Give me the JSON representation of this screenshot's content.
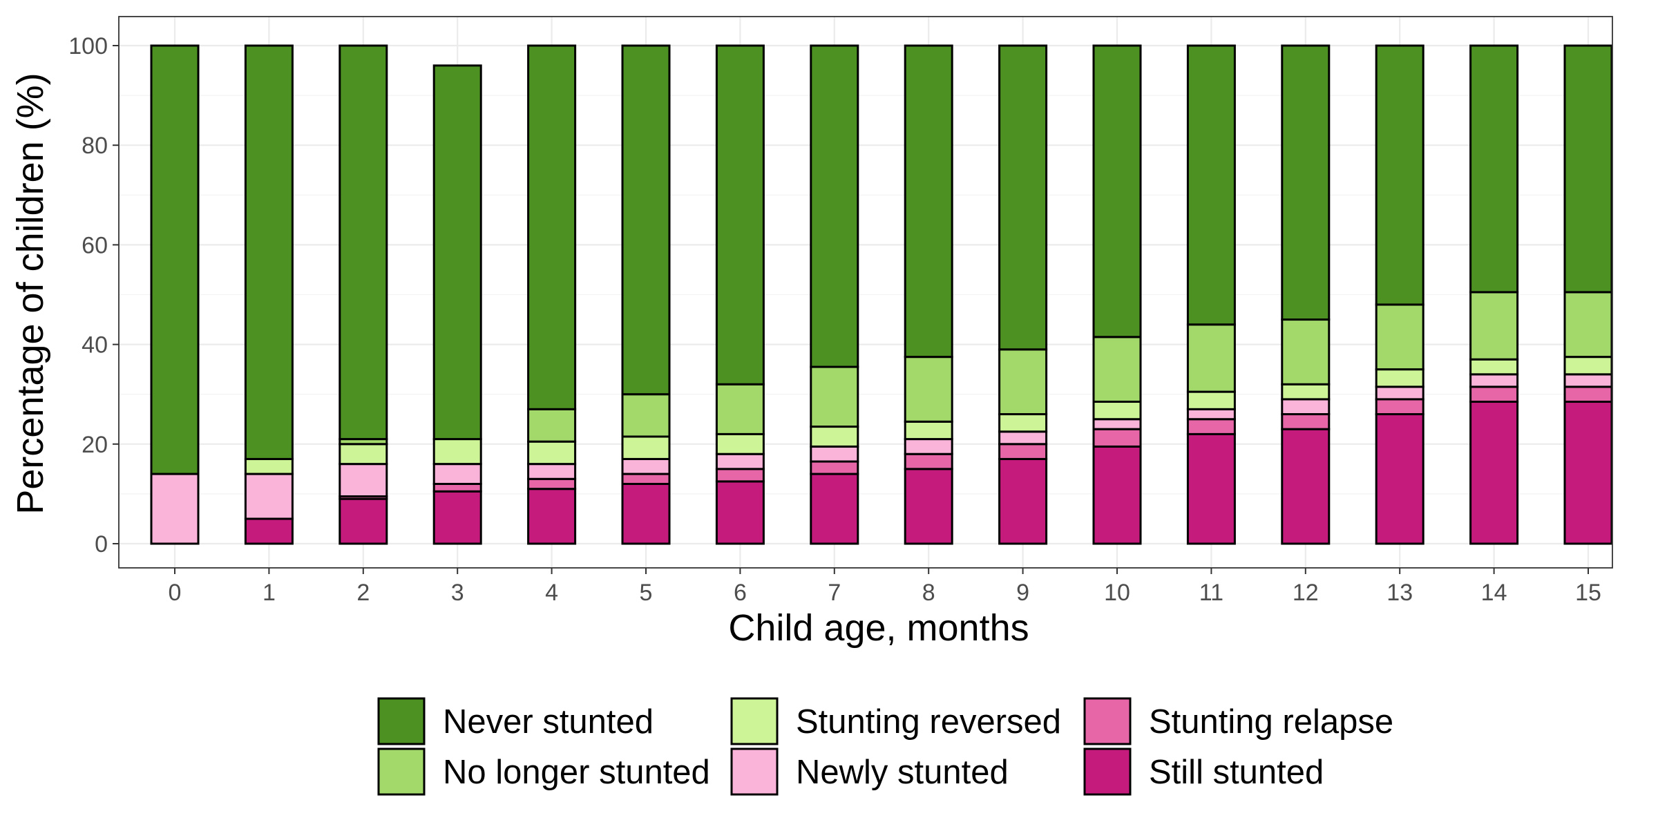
{
  "chart_data": {
    "type": "bar",
    "stacked": true,
    "xlabel": "Child age, months",
    "ylabel": "Percentage of children (%)",
    "ylim": [
      0,
      100
    ],
    "yticks": [
      0,
      20,
      40,
      60,
      80,
      100
    ],
    "grid": true,
    "legend_position": "bottom",
    "categories": [
      "0",
      "1",
      "2",
      "3",
      "4",
      "5",
      "6",
      "7",
      "8",
      "9",
      "10",
      "11",
      "12",
      "13",
      "14",
      "15"
    ],
    "series": [
      {
        "name": "Still stunted",
        "color": "#c51b7d",
        "values": [
          0,
          5,
          9,
          10.5,
          11,
          12,
          12.5,
          14,
          15,
          17,
          19.5,
          22,
          23,
          26,
          28.5,
          28.5
        ]
      },
      {
        "name": "Stunting relapse",
        "color": "#e766a8",
        "values": [
          0,
          0,
          0.5,
          1.5,
          2,
          2,
          2.5,
          2.5,
          3,
          3,
          3.5,
          3,
          3,
          3,
          3,
          3
        ]
      },
      {
        "name": "Newly stunted",
        "color": "#fbb4d9",
        "values": [
          14,
          9,
          6.5,
          4,
          3,
          3,
          3,
          3,
          3,
          2.5,
          2,
          2,
          3,
          2.5,
          2.5,
          2.5
        ]
      },
      {
        "name": "Stunting reversed",
        "color": "#cdf496",
        "values": [
          0,
          3,
          4,
          5,
          4.5,
          4.5,
          4,
          4,
          3.5,
          3.5,
          3.5,
          3.5,
          3,
          3.5,
          3,
          3.5
        ]
      },
      {
        "name": "No longer stunted",
        "color": "#a2d96a",
        "values": [
          0,
          0,
          1,
          0,
          6.5,
          8.5,
          10,
          12,
          13,
          13,
          13,
          13.5,
          13,
          13,
          13.5,
          13
        ]
      },
      {
        "name": "Never stunted",
        "color": "#4c9121",
        "values": [
          86,
          83,
          79,
          75,
          73,
          70,
          68,
          64.5,
          62.5,
          61,
          58.5,
          56,
          55,
          52,
          49.5,
          49.5
        ]
      }
    ],
    "legend_order": [
      "Never stunted",
      "No longer stunted",
      "Stunting reversed",
      "Newly stunted",
      "Stunting relapse",
      "Still stunted"
    ]
  }
}
